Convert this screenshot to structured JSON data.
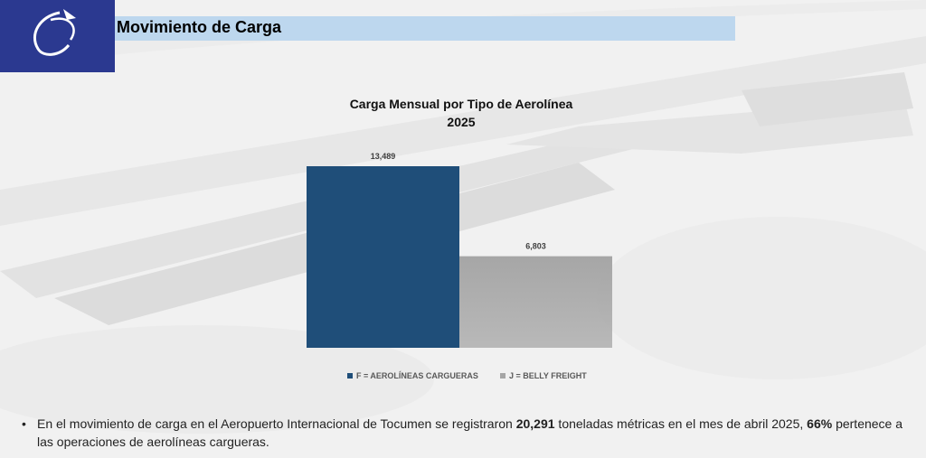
{
  "header": {
    "title": "Movimiento de Carga"
  },
  "colors": {
    "brand": "#2b3990",
    "title_bar": "#bdd7ee",
    "bar_primary": "#1f4e79",
    "bar_secondary": "#a6a6a6"
  },
  "chart_data": {
    "type": "bar",
    "title": "Carga Mensual por Tipo de Aerolínea",
    "subtitle": "2025",
    "categories": [
      "F = AEROLÍNEAS CARGUERAS",
      "J = BELLY FREIGHT"
    ],
    "values": [
      13489,
      6803
    ],
    "value_labels": [
      "13,489",
      "6,803"
    ],
    "colors": [
      "#1f4e79",
      "#a6a6a6"
    ],
    "ylim": [
      0,
      13489
    ],
    "grid": false,
    "legend_position": "bottom",
    "xlabel": "",
    "ylabel": ""
  },
  "note": {
    "bullet": "•",
    "part1": "En el movimiento de carga en el Aeropuerto Internacional de Tocumen se registraron ",
    "total": "20,291",
    "part2": " toneladas métricas en el mes de abril 2025, ",
    "pct": "66%",
    "part3": " pertenece a las operaciones de aerolíneas cargueras."
  }
}
